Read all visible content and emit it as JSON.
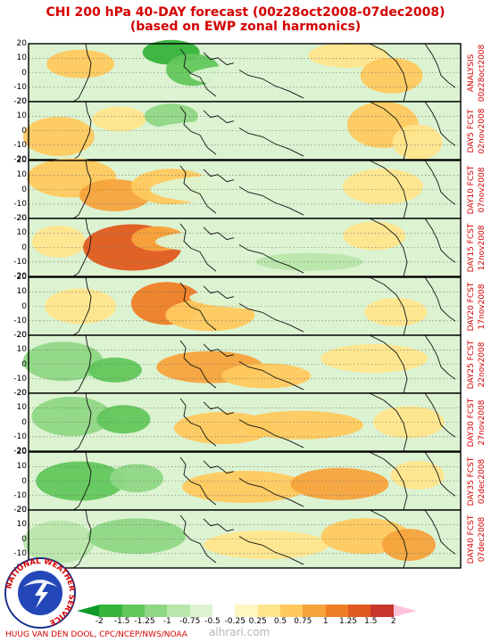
{
  "title": {
    "line1": "CHI 200 hPa 40-DAY forecast (00z28oct2008-07dec2008)",
    "line2": "(based on EWP zonal harmonics)"
  },
  "y_tick_labels": [
    "20",
    "10",
    "0",
    "-10",
    "-20"
  ],
  "panels": [
    {
      "label1": "ANALYSIS",
      "label2": "00z28oct2008"
    },
    {
      "label1": "DAY5 FCST",
      "label2": "02nov2008"
    },
    {
      "label1": "DAY10 FCST",
      "label2": "07nov2008"
    },
    {
      "label1": "DAY15 FCST",
      "label2": "12nov2008"
    },
    {
      "label1": "DAY20 FCST",
      "label2": "17nov2008"
    },
    {
      "label1": "DAY25 FCST",
      "label2": "22nov2008"
    },
    {
      "label1": "DAY30 FCST",
      "label2": "27nov2008"
    },
    {
      "label1": "DAY35 FCST",
      "label2": "02dec2008"
    },
    {
      "label1": "DAY40 FCST",
      "label2": "07dec2008"
    }
  ],
  "colorbar": {
    "labels": [
      "-2",
      "-1.5",
      "-1.25",
      "-1",
      "-0.75",
      "-0.5",
      "-0.25",
      "0.25",
      "0.5",
      "0.75",
      "1",
      "1.25",
      "1.5",
      "2"
    ],
    "colors": [
      "#0f9a2a",
      "#36b43b",
      "#62c75c",
      "#8fd785",
      "#b8e6ab",
      "#dcf3d2",
      "#ffffff",
      "#fff6c1",
      "#ffe58c",
      "#ffc95e",
      "#f7a33c",
      "#ef7d26",
      "#e05a1e",
      "#c8372d",
      "#ffc2da"
    ]
  },
  "logo": {
    "text": "NATIONAL WEATHER SERVICE"
  },
  "credit": "HUUG VAN DEN DOOL, CPC/NCEP/NWS/NOAA",
  "watermark": "alhrari.com"
}
